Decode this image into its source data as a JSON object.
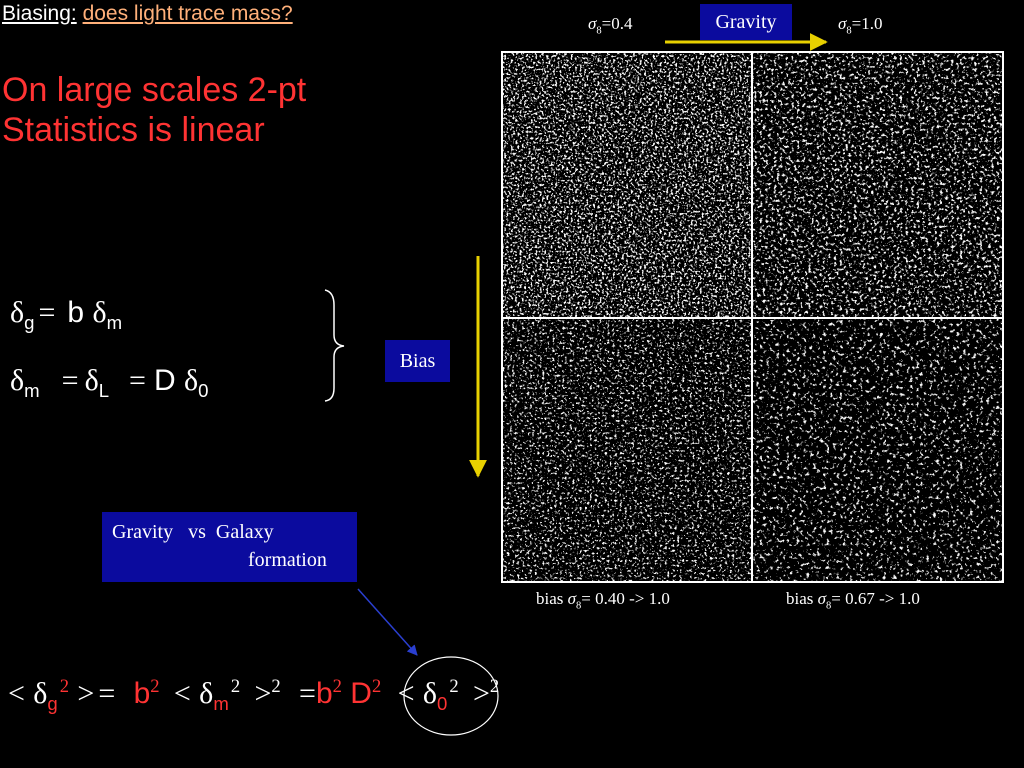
{
  "header": {
    "label": "Biasing:",
    "title": "does light trace mass?"
  },
  "statement": [
    "On large scales 2-pt",
    "Statistics is linear"
  ],
  "equations": {
    "galaxy": [
      "δ",
      "g",
      "=",
      "b",
      "δ",
      "m"
    ],
    "growth": [
      "δ",
      "m",
      "=",
      "δ",
      "L",
      "=",
      "D",
      "δ",
      "0"
    ],
    "variance": [
      "<",
      "δ",
      "g",
      "2",
      ">",
      "=",
      "b",
      "2",
      "<",
      "δ",
      "m",
      "2",
      ">",
      "2",
      "=",
      "b",
      "2",
      "D",
      "2",
      "<",
      "δ",
      "0",
      "2",
      ">",
      "2"
    ]
  },
  "bias_box": "Bias",
  "gravity_box": "Gravity",
  "formation_box": [
    "Gravity   vs  Galaxy",
    "formation"
  ],
  "panel_top_labels": [
    [
      "σ",
      "8",
      "=0.4"
    ],
    [
      "σ",
      "8",
      "=1.0"
    ]
  ],
  "panel_captions": [
    [
      "bias",
      "σ",
      "8",
      "= 0.40 -> 1.0"
    ],
    [
      "bias",
      "σ",
      "8",
      "= 0.67 -> 1.0"
    ]
  ]
}
